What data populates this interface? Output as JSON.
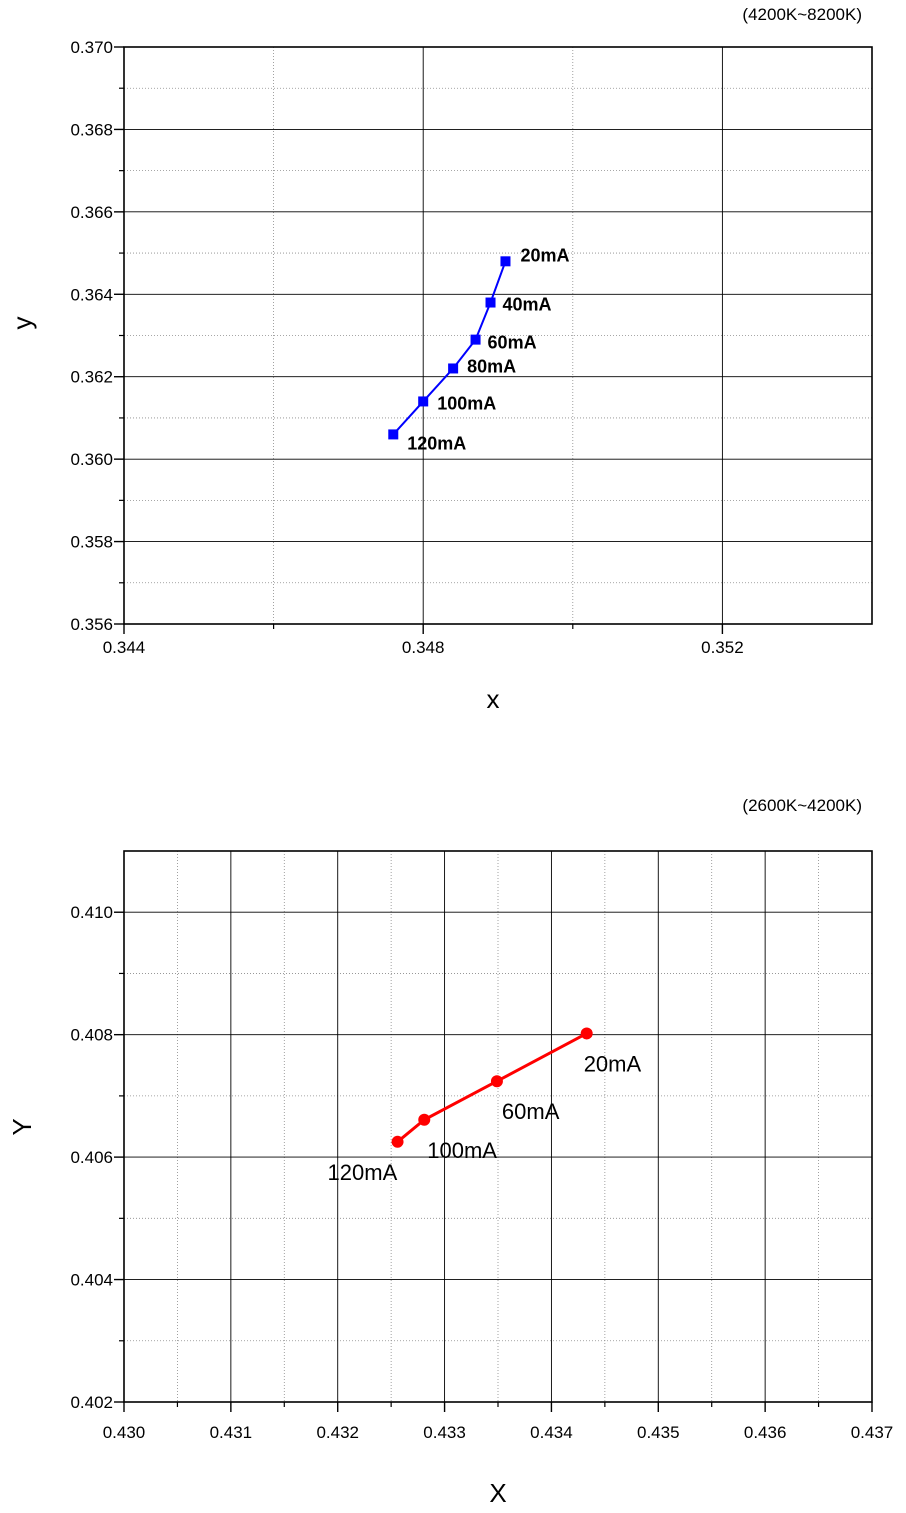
{
  "chart_data": [
    {
      "type": "line",
      "note": "(4200K~8200K)",
      "xlabel": "x",
      "ylabel": "y",
      "xlim": [
        0.344,
        0.354
      ],
      "ylim": [
        0.356,
        0.37
      ],
      "x_ticks": [
        "0.344",
        "0.348",
        "0.352"
      ],
      "y_ticks": [
        "0.356",
        "0.358",
        "0.360",
        "0.362",
        "0.364",
        "0.366",
        "0.368",
        "0.370"
      ],
      "grid": true,
      "marker": "square",
      "label_style": "bold",
      "color": "#0000ff",
      "series": [
        {
          "points": [
            {
              "x": 0.3476,
              "y": 0.3606,
              "label": "120mA"
            },
            {
              "x": 0.348,
              "y": 0.3614,
              "label": "100mA"
            },
            {
              "x": 0.3484,
              "y": 0.3622,
              "label": "80mA"
            },
            {
              "x": 0.3487,
              "y": 0.3629,
              "label": "60mA"
            },
            {
              "x": 0.3489,
              "y": 0.3638,
              "label": "40mA"
            },
            {
              "x": 0.3491,
              "y": 0.3648,
              "label": "20mA"
            }
          ]
        }
      ]
    },
    {
      "type": "line",
      "note": "(2600K~4200K)",
      "xlabel": "X",
      "ylabel": "Y",
      "xlim": [
        0.43,
        0.437
      ],
      "ylim": [
        0.402,
        0.411
      ],
      "x_ticks": [
        "0.430",
        "0.431",
        "0.432",
        "0.433",
        "0.434",
        "0.435",
        "0.436",
        "0.437"
      ],
      "y_ticks": [
        "0.402",
        "0.404",
        "0.406",
        "0.408",
        "0.410"
      ],
      "grid": true,
      "marker": "circle",
      "label_style": "plain",
      "color": "#ff0000",
      "series": [
        {
          "points": [
            {
              "x": 0.43256,
              "y": 0.40625,
              "label": "120mA"
            },
            {
              "x": 0.43281,
              "y": 0.40661,
              "label": "100mA"
            },
            {
              "x": 0.43349,
              "y": 0.40724,
              "label": "60mA"
            },
            {
              "x": 0.43433,
              "y": 0.40802,
              "label": "20mA"
            }
          ]
        }
      ]
    }
  ]
}
